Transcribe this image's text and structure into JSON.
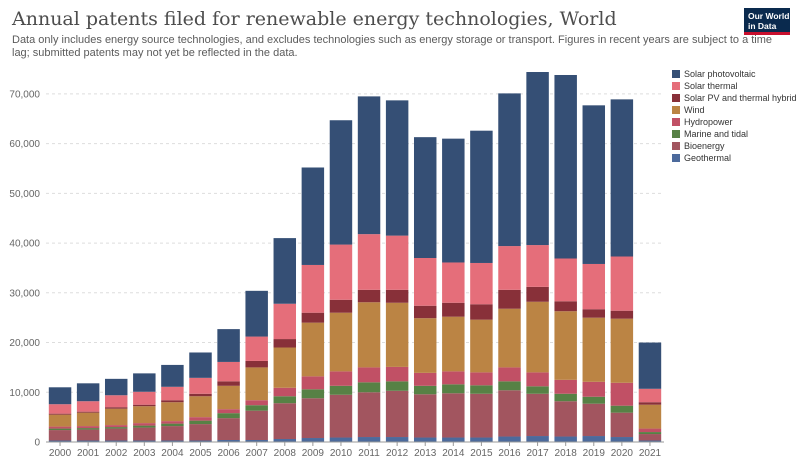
{
  "title": "Annual patents filed for renewable energy technologies, World",
  "subtitle": "Data only includes energy source technologies, and excludes technologies such as energy storage or transport. Figures in recent years are subject to a time lag; submitted patents may not yet be reflected in the data.",
  "logo": {
    "line1": "Our World",
    "line2": "in Data"
  },
  "chart_data": {
    "type": "bar",
    "stacked": true,
    "categories": [
      "2000",
      "2001",
      "2002",
      "2003",
      "2004",
      "2005",
      "2006",
      "2007",
      "2008",
      "2009",
      "2010",
      "2011",
      "2012",
      "2013",
      "2014",
      "2015",
      "2016",
      "2017",
      "2018",
      "2019",
      "2020",
      "2021"
    ],
    "ylim": [
      0,
      74000
    ],
    "yticks": [
      0,
      10000,
      20000,
      30000,
      40000,
      50000,
      60000,
      70000
    ],
    "ytick_labels": [
      "0",
      "10,000",
      "20,000",
      "30,000",
      "40,000",
      "50,000",
      "60,000",
      "70,000"
    ],
    "grid": true,
    "legend_position": "right",
    "series": [
      {
        "name": "Geothermal",
        "color": "#4c6a9c",
        "values": [
          300,
          300,
          300,
          300,
          300,
          300,
          400,
          400,
          600,
          800,
          900,
          1000,
          1000,
          900,
          900,
          900,
          1100,
          1200,
          1100,
          1200,
          1000,
          300
        ]
      },
      {
        "name": "Bioenergy",
        "color": "#a2555f",
        "values": [
          2100,
          2200,
          2400,
          2600,
          2900,
          3300,
          4400,
          5900,
          7200,
          8000,
          8600,
          9000,
          9300,
          8700,
          8900,
          8800,
          9300,
          8500,
          7100,
          6500,
          4900,
          1300
        ]
      },
      {
        "name": "Marine and tidal",
        "color": "#578145",
        "values": [
          300,
          300,
          300,
          400,
          500,
          700,
          1000,
          1100,
          1400,
          1800,
          1800,
          2000,
          1900,
          1700,
          1800,
          1700,
          1800,
          1500,
          1500,
          1400,
          1400,
          400
        ]
      },
      {
        "name": "Hydropower",
        "color": "#c15065",
        "values": [
          400,
          400,
          400,
          500,
          500,
          700,
          800,
          1000,
          1700,
          2600,
          2900,
          3000,
          2900,
          2600,
          2600,
          2600,
          2800,
          2800,
          2800,
          3000,
          4600,
          700
        ]
      },
      {
        "name": "Wind",
        "color": "#bb8444",
        "values": [
          2400,
          2700,
          3300,
          3400,
          3800,
          4200,
          4700,
          6600,
          8100,
          10800,
          11800,
          13100,
          12900,
          11000,
          11000,
          10600,
          11800,
          14200,
          13800,
          12900,
          12900,
          4800
        ]
      },
      {
        "name": "Solar PV and thermal hybrid",
        "color": "#883039",
        "values": [
          200,
          200,
          300,
          300,
          400,
          500,
          900,
          1300,
          1700,
          2000,
          2600,
          2500,
          2600,
          2500,
          2800,
          3100,
          3800,
          3000,
          2000,
          1700,
          1600,
          500
        ]
      },
      {
        "name": "Solar thermal",
        "color": "#e56e7a",
        "values": [
          1900,
          2100,
          2400,
          2600,
          2700,
          3200,
          3900,
          4900,
          7100,
          9600,
          11100,
          11200,
          10900,
          9600,
          8100,
          8300,
          8800,
          8400,
          8600,
          9100,
          10900,
          2700
        ]
      },
      {
        "name": "Solar photovoltaic",
        "color": "#354f75",
        "values": [
          3400,
          3600,
          3300,
          3700,
          4400,
          5100,
          6600,
          9200,
          13200,
          19600,
          25000,
          27700,
          27200,
          24300,
          24900,
          26600,
          30700,
          34800,
          36900,
          31900,
          31600,
          9300
        ]
      }
    ],
    "legend_order": [
      "Solar photovoltaic",
      "Solar thermal",
      "Solar PV and thermal hybrid",
      "Wind",
      "Hydropower",
      "Marine and tidal",
      "Bioenergy",
      "Geothermal"
    ]
  }
}
